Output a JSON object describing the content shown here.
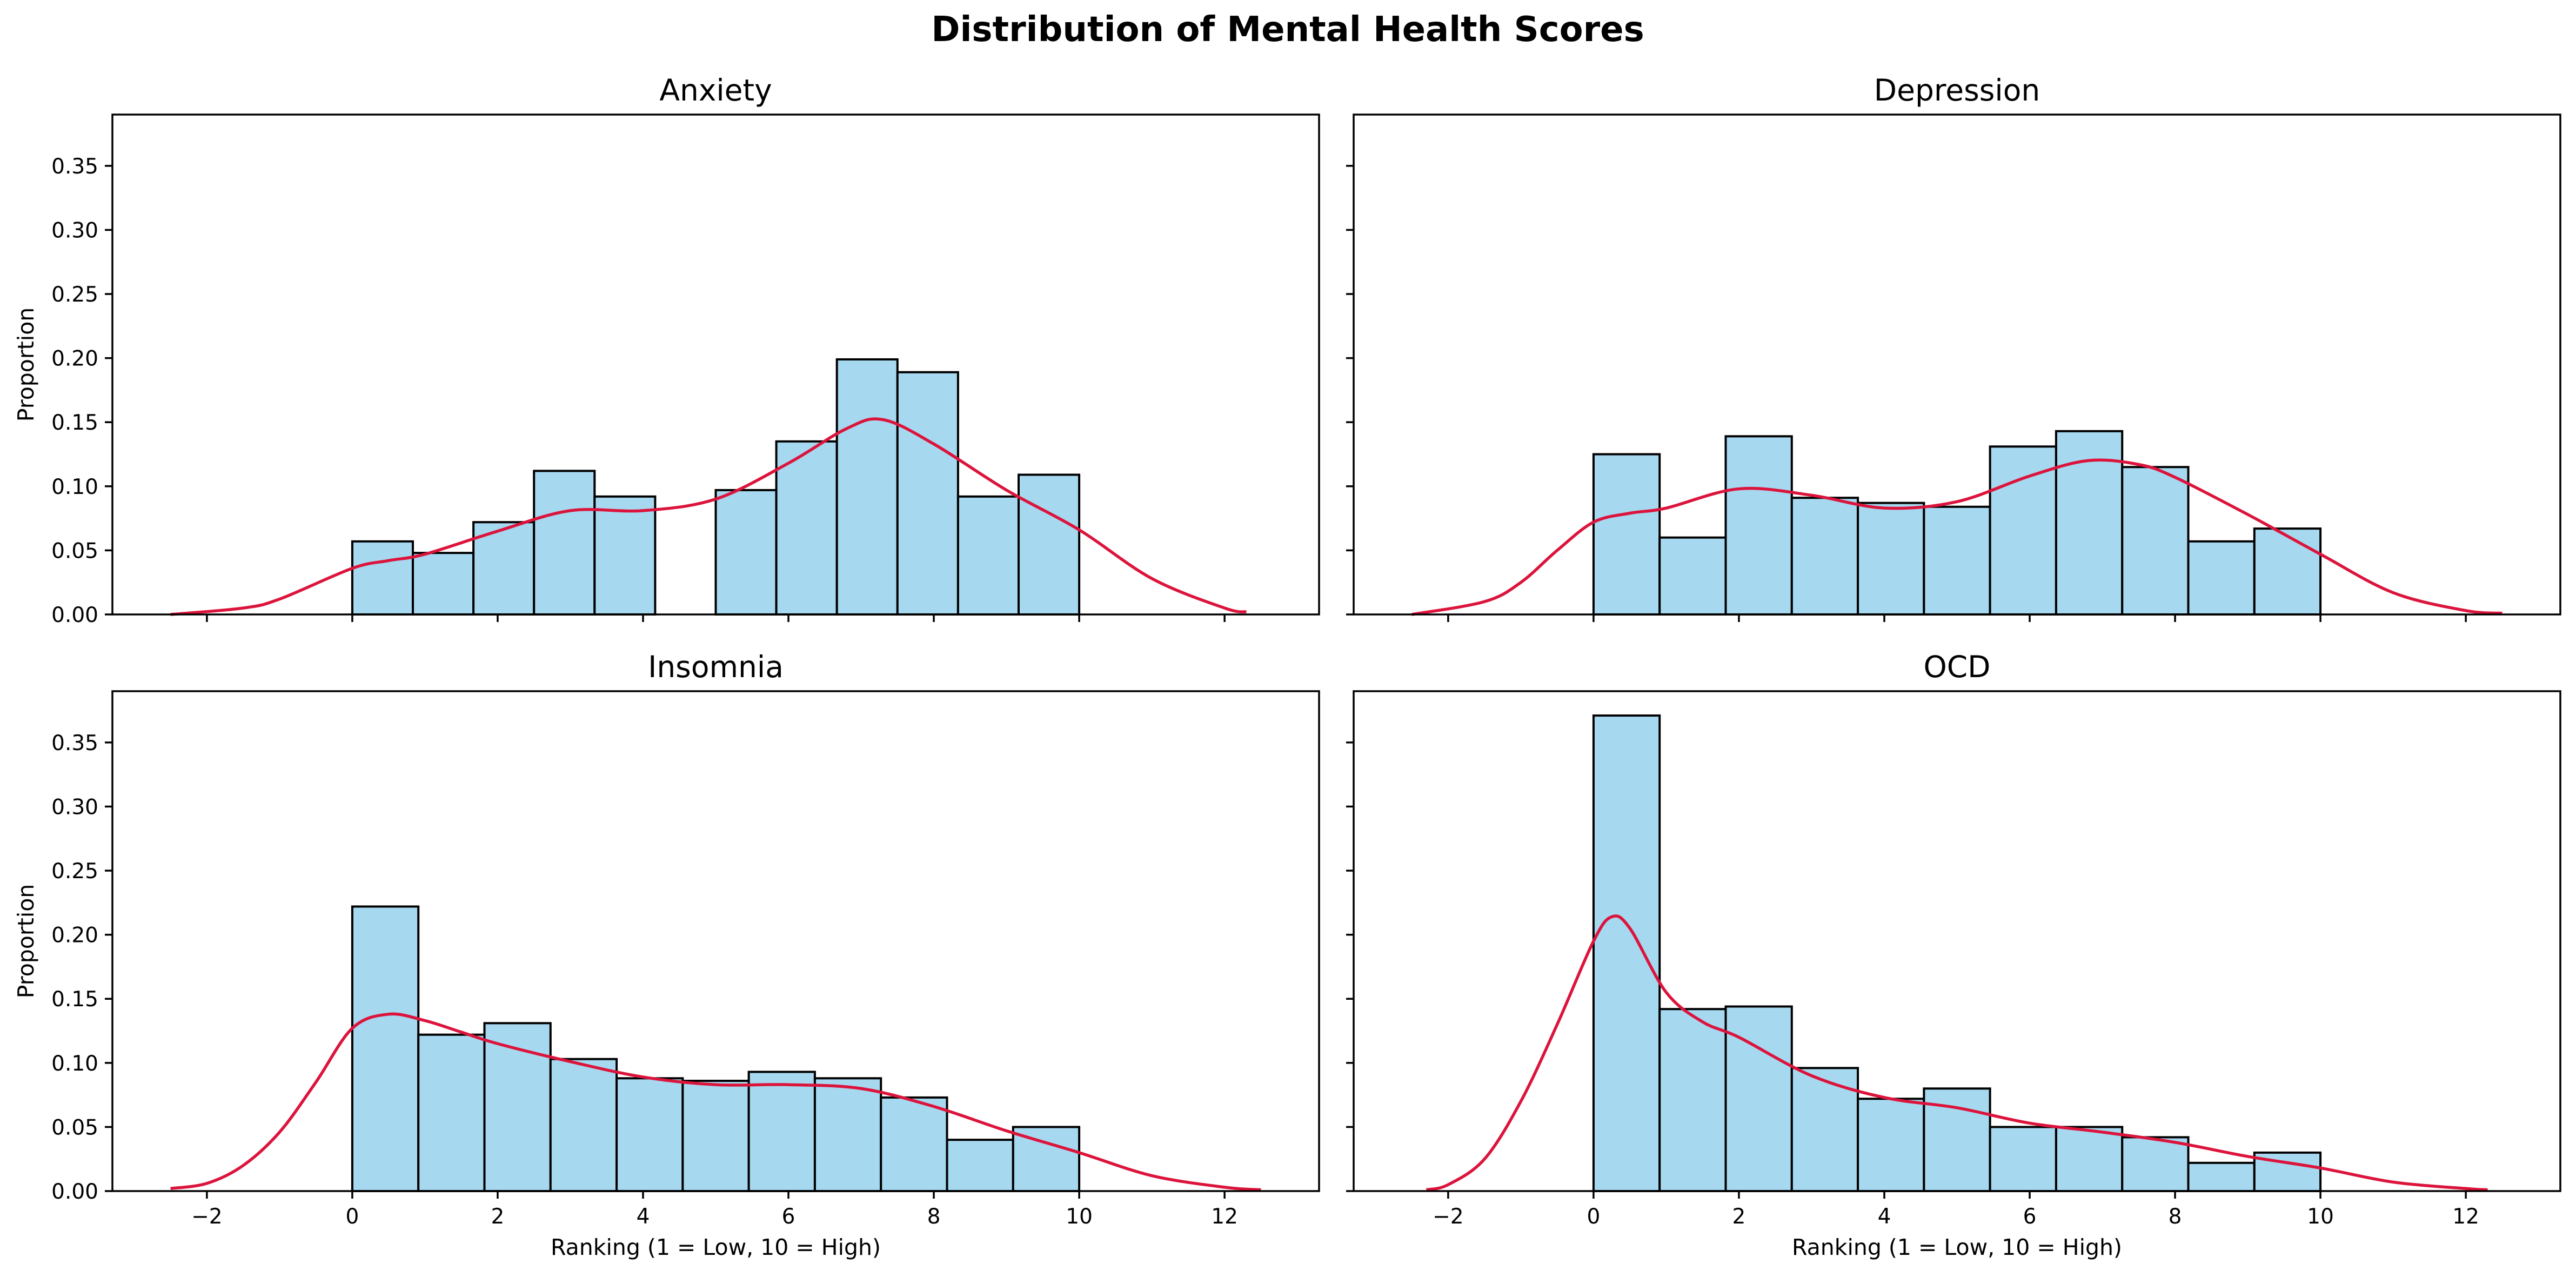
{
  "chart_data": {
    "type": "histogram",
    "title": "Distribution of Mental Health Scores",
    "xlabel": "Ranking (1 = Low, 10 = High)",
    "ylabel": "Proportion",
    "xlim": [
      -3.3,
      13.3
    ],
    "ylim": [
      0,
      0.39
    ],
    "xticks": [
      "−2",
      "0",
      "2",
      "4",
      "6",
      "8",
      "10",
      "12"
    ],
    "yticks": [
      "0.00",
      "0.05",
      "0.10",
      "0.15",
      "0.20",
      "0.25",
      "0.30",
      "0.35"
    ],
    "bar_color": "#a6d8f0",
    "bar_edge_color": "#000000",
    "kde_color": "#dc143c",
    "grid": false,
    "panels": [
      {
        "title": "Anxiety",
        "bins": [
          {
            "x0": 0.0,
            "x1": 0.8333,
            "value": 0.057
          },
          {
            "x0": 0.8333,
            "x1": 1.6667,
            "value": 0.048
          },
          {
            "x0": 1.6667,
            "x1": 2.5,
            "value": 0.072
          },
          {
            "x0": 2.5,
            "x1": 3.3333,
            "value": 0.112
          },
          {
            "x0": 3.3333,
            "x1": 4.1667,
            "value": 0.092
          },
          {
            "x0": 4.1667,
            "x1": 5.0,
            "value": 0.0
          },
          {
            "x0": 5.0,
            "x1": 5.8333,
            "value": 0.097
          },
          {
            "x0": 5.8333,
            "x1": 6.6667,
            "value": 0.135
          },
          {
            "x0": 6.6667,
            "x1": 7.5,
            "value": 0.199
          },
          {
            "x0": 7.5,
            "x1": 8.3333,
            "value": 0.189
          },
          {
            "x0": 8.3333,
            "x1": 9.1667,
            "value": 0.092
          },
          {
            "x0": 9.1667,
            "x1": 10.0,
            "value": 0.109
          }
        ],
        "kde": {
          "x": [
            -2.5,
            -1.5,
            -1.0,
            0.0,
            0.5,
            1.0,
            2.0,
            3.0,
            4.0,
            5.0,
            6.0,
            6.8,
            7.3,
            8.0,
            9.0,
            10.0,
            11.0,
            12.0,
            12.3
          ],
          "y": [
            0.0,
            0.005,
            0.012,
            0.036,
            0.042,
            0.047,
            0.065,
            0.081,
            0.081,
            0.09,
            0.118,
            0.145,
            0.152,
            0.133,
            0.097,
            0.066,
            0.028,
            0.005,
            0.002
          ]
        }
      },
      {
        "title": "Depression",
        "bins": [
          {
            "x0": 0.0,
            "x1": 0.9091,
            "value": 0.125
          },
          {
            "x0": 0.9091,
            "x1": 1.8182,
            "value": 0.06
          },
          {
            "x0": 1.8182,
            "x1": 2.7273,
            "value": 0.139
          },
          {
            "x0": 2.7273,
            "x1": 3.6364,
            "value": 0.091
          },
          {
            "x0": 3.6364,
            "x1": 4.5455,
            "value": 0.087
          },
          {
            "x0": 4.5455,
            "x1": 5.4545,
            "value": 0.084
          },
          {
            "x0": 5.4545,
            "x1": 6.3636,
            "value": 0.131
          },
          {
            "x0": 6.3636,
            "x1": 7.2727,
            "value": 0.143
          },
          {
            "x0": 7.2727,
            "x1": 8.1818,
            "value": 0.115
          },
          {
            "x0": 8.1818,
            "x1": 9.0909,
            "value": 0.057
          },
          {
            "x0": 9.0909,
            "x1": 10.0,
            "value": 0.067
          }
        ],
        "kde": {
          "x": [
            -2.5,
            -1.5,
            -1.0,
            -0.5,
            0.0,
            0.5,
            1.0,
            2.0,
            3.0,
            4.0,
            5.0,
            6.0,
            6.8,
            7.5,
            8.0,
            9.0,
            10.0,
            11.0,
            12.0,
            12.5
          ],
          "y": [
            0.0,
            0.01,
            0.025,
            0.05,
            0.072,
            0.079,
            0.083,
            0.098,
            0.093,
            0.083,
            0.088,
            0.108,
            0.12,
            0.117,
            0.107,
            0.078,
            0.047,
            0.017,
            0.003,
            0.001
          ]
        }
      },
      {
        "title": "Insomnia",
        "bins": [
          {
            "x0": 0.0,
            "x1": 0.9091,
            "value": 0.222
          },
          {
            "x0": 0.9091,
            "x1": 1.8182,
            "value": 0.122
          },
          {
            "x0": 1.8182,
            "x1": 2.7273,
            "value": 0.131
          },
          {
            "x0": 2.7273,
            "x1": 3.6364,
            "value": 0.103
          },
          {
            "x0": 3.6364,
            "x1": 4.5455,
            "value": 0.088
          },
          {
            "x0": 4.5455,
            "x1": 5.4545,
            "value": 0.086
          },
          {
            "x0": 5.4545,
            "x1": 6.3636,
            "value": 0.093
          },
          {
            "x0": 6.3636,
            "x1": 7.2727,
            "value": 0.088
          },
          {
            "x0": 7.2727,
            "x1": 8.1818,
            "value": 0.073
          },
          {
            "x0": 8.1818,
            "x1": 9.0909,
            "value": 0.04
          },
          {
            "x0": 9.0909,
            "x1": 10.0,
            "value": 0.05
          }
        ],
        "kde": {
          "x": [
            -2.5,
            -2.0,
            -1.5,
            -1.0,
            -0.5,
            0.0,
            0.5,
            1.0,
            1.5,
            2.0,
            3.0,
            4.0,
            5.0,
            6.0,
            7.0,
            8.0,
            9.0,
            10.0,
            11.0,
            12.0,
            12.5
          ],
          "y": [
            0.002,
            0.006,
            0.02,
            0.046,
            0.085,
            0.127,
            0.138,
            0.133,
            0.124,
            0.115,
            0.101,
            0.089,
            0.083,
            0.083,
            0.08,
            0.066,
            0.047,
            0.03,
            0.012,
            0.003,
            0.001
          ]
        }
      },
      {
        "title": "OCD",
        "bins": [
          {
            "x0": 0.0,
            "x1": 0.9091,
            "value": 0.371
          },
          {
            "x0": 0.9091,
            "x1": 1.8182,
            "value": 0.142
          },
          {
            "x0": 1.8182,
            "x1": 2.7273,
            "value": 0.144
          },
          {
            "x0": 2.7273,
            "x1": 3.6364,
            "value": 0.096
          },
          {
            "x0": 3.6364,
            "x1": 4.5455,
            "value": 0.072
          },
          {
            "x0": 4.5455,
            "x1": 5.4545,
            "value": 0.08
          },
          {
            "x0": 5.4545,
            "x1": 6.3636,
            "value": 0.05
          },
          {
            "x0": 6.3636,
            "x1": 7.2727,
            "value": 0.05
          },
          {
            "x0": 7.2727,
            "x1": 8.1818,
            "value": 0.042
          },
          {
            "x0": 8.1818,
            "x1": 9.0909,
            "value": 0.022
          },
          {
            "x0": 9.0909,
            "x1": 10.0,
            "value": 0.03
          }
        ],
        "kde": {
          "x": [
            -2.3,
            -2.0,
            -1.5,
            -1.0,
            -0.5,
            0.0,
            0.25,
            0.5,
            1.0,
            1.5,
            2.0,
            3.0,
            4.0,
            5.0,
            6.0,
            7.0,
            8.0,
            9.0,
            10.0,
            11.0,
            12.0,
            12.3
          ],
          "y": [
            0.001,
            0.005,
            0.025,
            0.07,
            0.13,
            0.195,
            0.214,
            0.205,
            0.155,
            0.132,
            0.12,
            0.09,
            0.073,
            0.065,
            0.053,
            0.046,
            0.038,
            0.027,
            0.018,
            0.007,
            0.002,
            0.001
          ]
        }
      }
    ]
  }
}
